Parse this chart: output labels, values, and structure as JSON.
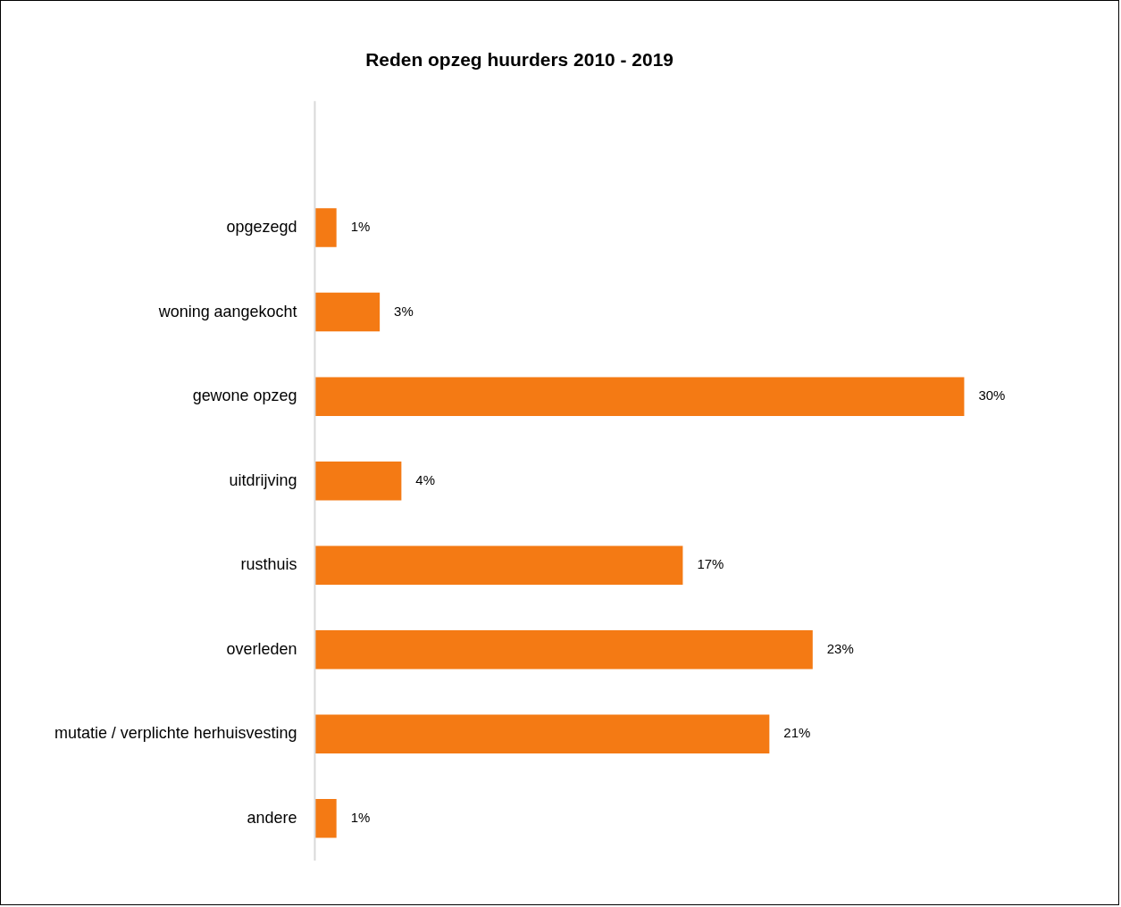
{
  "chart_data": {
    "type": "bar",
    "orientation": "horizontal",
    "title": "Reden opzeg huurders 2010 - 2019",
    "categories": [
      "opgezegd",
      "woning aangekocht",
      "gewone opzeg",
      "uitdrijving",
      "rusthuis",
      "overleden",
      "mutatie / verplichte herhuisvesting",
      "andere"
    ],
    "values": [
      1,
      3,
      30,
      4,
      17,
      23,
      21,
      1
    ],
    "color": "#f47a14",
    "value_labels": [
      "1%",
      "3%",
      "30%",
      "4%",
      "17%",
      "23%",
      "21%",
      "1%"
    ],
    "grid": false,
    "legend": false
  }
}
